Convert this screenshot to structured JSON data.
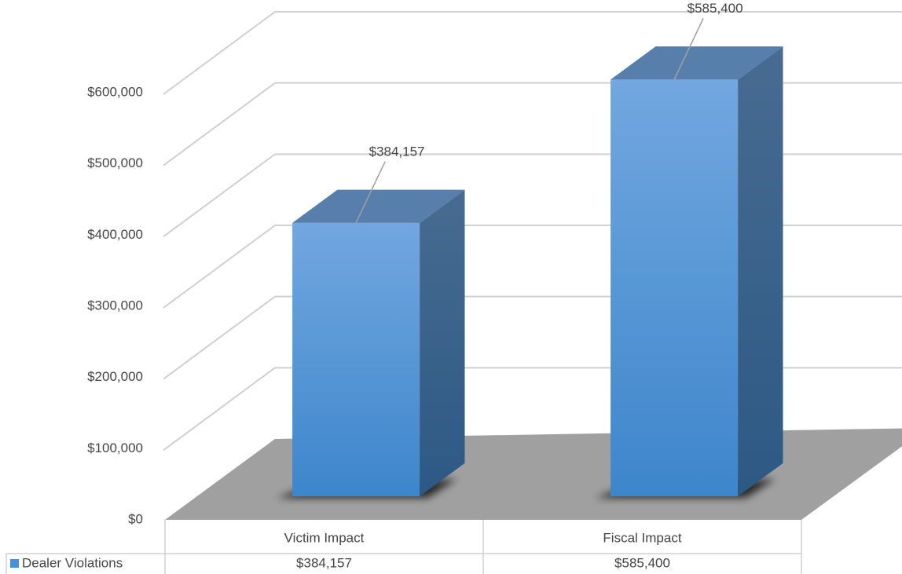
{
  "chart_data": {
    "type": "bar",
    "categories": [
      "Victim Impact",
      "Fiscal Impact"
    ],
    "series": [
      {
        "name": "Dealer Violations",
        "color": "#4a90d9",
        "values": [
          384157,
          585400
        ],
        "value_labels": [
          "$384,157",
          "$585,400"
        ]
      }
    ],
    "ylim": [
      0,
      600000
    ],
    "yticks": [
      {
        "value": 0,
        "label": "$0"
      },
      {
        "value": 100000,
        "label": "$100,000"
      },
      {
        "value": 200000,
        "label": "$200,000"
      },
      {
        "value": 300000,
        "label": "$300,000"
      },
      {
        "value": 400000,
        "label": "$400,000"
      },
      {
        "value": 500000,
        "label": "$500,000"
      },
      {
        "value": 600000,
        "label": "$600,000"
      }
    ],
    "grid": true,
    "legend": "data-table"
  }
}
